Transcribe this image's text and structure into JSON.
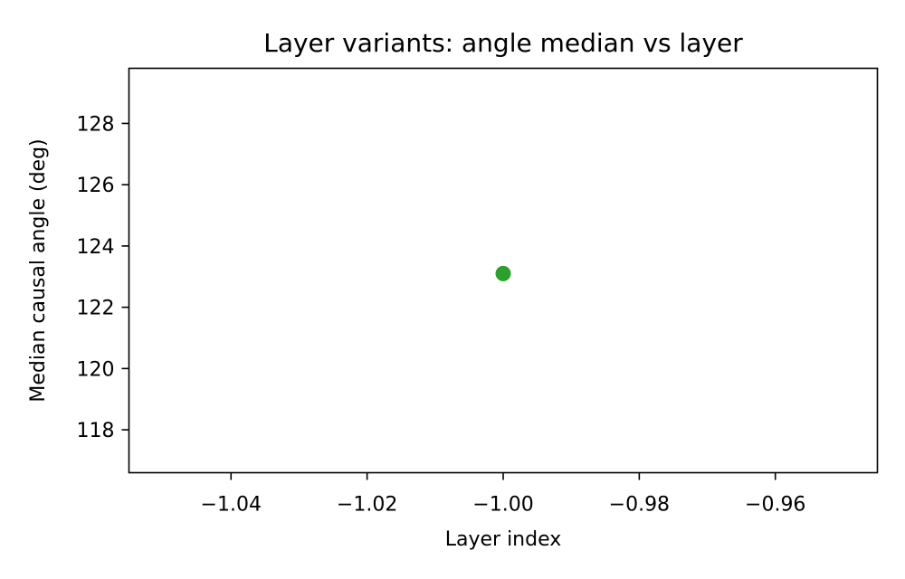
{
  "chart_data": {
    "type": "scatter",
    "title": "Layer variants: angle median vs layer",
    "xlabel": "Layer index",
    "ylabel": "Median causal angle (deg)",
    "xlim": [
      -1.055,
      -0.945
    ],
    "ylim": [
      116.6,
      129.8
    ],
    "xticks": [
      -1.04,
      -1.02,
      -1.0,
      -0.98,
      -0.96
    ],
    "xtick_labels": [
      "−1.04",
      "−1.02",
      "−1.00",
      "−0.98",
      "−0.96"
    ],
    "yticks": [
      118,
      120,
      122,
      124,
      126,
      128
    ],
    "ytick_labels": [
      "118",
      "120",
      "122",
      "124",
      "126",
      "128"
    ],
    "grid": false,
    "series": [
      {
        "color": "#2ca02c",
        "points": [
          {
            "x": -1.0,
            "y": 123.1
          }
        ]
      }
    ]
  }
}
